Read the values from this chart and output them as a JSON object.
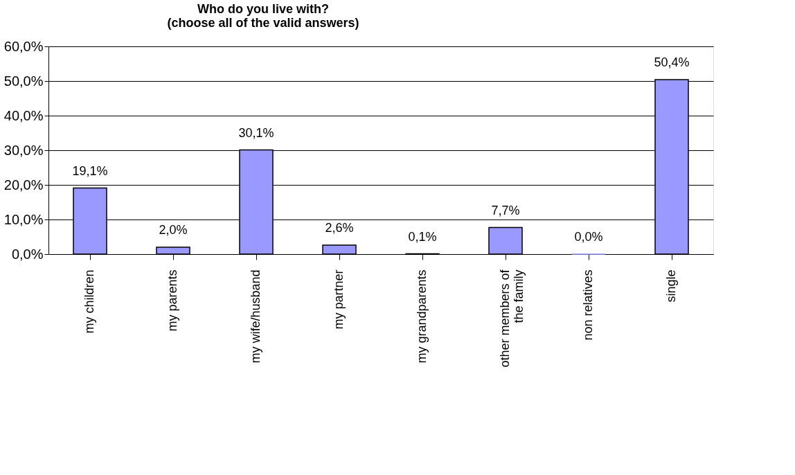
{
  "chart_data": {
    "type": "bar",
    "title": "Who do you live with?\n(choose all of the valid answers)",
    "categories": [
      "my children",
      "my parents",
      "my wife/husband",
      "my partner",
      "my grandparents",
      "other members of the family",
      "non relatives",
      "single"
    ],
    "values": [
      19.1,
      2.0,
      30.1,
      2.6,
      0.1,
      7.7,
      0.0,
      50.4
    ],
    "value_labels": [
      "19,1%",
      "2,0%",
      "30,1%",
      "2,6%",
      "0,1%",
      "7,7%",
      "0,0%",
      "50,4%"
    ],
    "color": "#9999ff",
    "ylim": [
      0,
      60
    ],
    "yticks": [
      {
        "value": 0,
        "label": "0,0%"
      },
      {
        "value": 10,
        "label": "10,0%"
      },
      {
        "value": 20,
        "label": "20,0%"
      },
      {
        "value": 30,
        "label": "30,0%"
      },
      {
        "value": 40,
        "label": "40,0%"
      },
      {
        "value": 50,
        "label": "50,0%"
      },
      {
        "value": 60,
        "label": "60,0%"
      }
    ],
    "grid": "y"
  }
}
